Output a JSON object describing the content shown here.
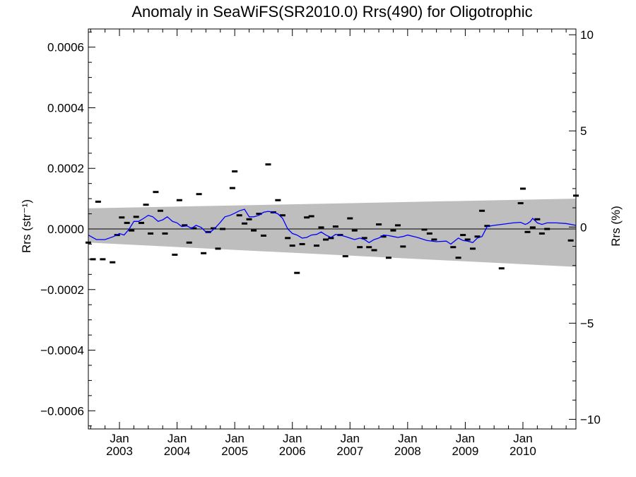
{
  "chart_data": {
    "type": "scatter",
    "title": "Anomaly in SeaWiFS(SR2010.0) Rrs(490) for Oligotrophic",
    "ylabel_left": "Rrs (str⁻¹)",
    "ylabel_right": "Rrs (%)",
    "ylim_left": [
      -0.00066,
      0.00066
    ],
    "ylim_right": [
      -10.5,
      10.3
    ],
    "xlim": [
      2002.46,
      2010.92
    ],
    "left_ticks": [
      {
        "value": 0.0006,
        "label": "0.0006"
      },
      {
        "value": 0.0004,
        "label": "0.0004"
      },
      {
        "value": 0.0002,
        "label": "0.0002"
      },
      {
        "value": 0.0,
        "label": "0.0000"
      },
      {
        "value": -0.0002,
        "label": "−0.0002"
      },
      {
        "value": -0.0004,
        "label": "−0.0004"
      },
      {
        "value": -0.0006,
        "label": "−0.0006"
      }
    ],
    "right_ticks": [
      {
        "value": 10,
        "label": "10"
      },
      {
        "value": 5,
        "label": "5"
      },
      {
        "value": 0,
        "label": "0"
      },
      {
        "value": -5,
        "label": "−5"
      },
      {
        "value": -10,
        "label": "−10"
      }
    ],
    "x_ticks": [
      {
        "value": 2003.0,
        "month": "Jan",
        "year": "2003"
      },
      {
        "value": 2004.0,
        "month": "Jan",
        "year": "2004"
      },
      {
        "value": 2005.0,
        "month": "Jan",
        "year": "2005"
      },
      {
        "value": 2006.0,
        "month": "Jan",
        "year": "2006"
      },
      {
        "value": 2007.0,
        "month": "Jan",
        "year": "2007"
      },
      {
        "value": 2008.0,
        "month": "Jan",
        "year": "2008"
      },
      {
        "value": 2009.0,
        "month": "Jan",
        "year": "2009"
      },
      {
        "value": 2010.0,
        "month": "Jan",
        "year": "2010"
      }
    ],
    "band": {
      "x": [
        2002.46,
        2010.92
      ],
      "upper": [
        6.8e-05,
        0.0001
      ],
      "lower": [
        -4.5e-05,
        -0.000125
      ],
      "color": "#bebebe"
    },
    "zero_line_color": "#000000",
    "points_color": "#000000",
    "points": [
      [
        2002.46,
        -4.5e-05
      ],
      [
        2002.54,
        -0.0001
      ],
      [
        2002.63,
        9e-05
      ],
      [
        2002.71,
        -0.0001
      ],
      [
        2002.88,
        -0.00011
      ],
      [
        2002.96,
        -2e-05
      ],
      [
        2003.04,
        3.8e-05
      ],
      [
        2003.13,
        2e-05
      ],
      [
        2003.21,
        -5e-06
      ],
      [
        2003.29,
        4e-05
      ],
      [
        2003.38,
        2e-05
      ],
      [
        2003.46,
        8e-05
      ],
      [
        2003.54,
        -1.5e-05
      ],
      [
        2003.63,
        0.000122
      ],
      [
        2003.71,
        6e-05
      ],
      [
        2003.79,
        -1.5e-05
      ],
      [
        2003.96,
        -8.5e-05
      ],
      [
        2004.04,
        9.5e-05
      ],
      [
        2004.13,
        1.2e-05
      ],
      [
        2004.21,
        -4.5e-05
      ],
      [
        2004.29,
        2e-06
      ],
      [
        2004.38,
        0.000115
      ],
      [
        2004.46,
        -8e-05
      ],
      [
        2004.54,
        -1e-05
      ],
      [
        2004.63,
        2e-06
      ],
      [
        2004.71,
        -6.5e-05
      ],
      [
        2004.79,
        0.0
      ],
      [
        2004.96,
        0.000135
      ],
      [
        2005.0,
        0.00019
      ],
      [
        2005.08,
        4.5e-05
      ],
      [
        2005.17,
        1.8e-05
      ],
      [
        2005.25,
        3.2e-05
      ],
      [
        2005.33,
        -5e-06
      ],
      [
        2005.42,
        5e-05
      ],
      [
        2005.5,
        -2.2e-05
      ],
      [
        2005.58,
        0.000213
      ],
      [
        2005.67,
        5.5e-05
      ],
      [
        2005.75,
        9.5e-05
      ],
      [
        2005.83,
        4.5e-05
      ],
      [
        2005.92,
        -3e-05
      ],
      [
        2006.0,
        -5.5e-05
      ],
      [
        2006.08,
        -0.000145
      ],
      [
        2006.17,
        -5e-05
      ],
      [
        2006.25,
        3.8e-05
      ],
      [
        2006.33,
        4.2e-05
      ],
      [
        2006.42,
        -5.5e-05
      ],
      [
        2006.5,
        5e-06
      ],
      [
        2006.58,
        -3.5e-05
      ],
      [
        2006.67,
        -3e-05
      ],
      [
        2006.75,
        8e-06
      ],
      [
        2006.83,
        -2e-05
      ],
      [
        2006.92,
        -9e-05
      ],
      [
        2007.0,
        3.5e-05
      ],
      [
        2007.08,
        -5e-06
      ],
      [
        2007.17,
        -6e-05
      ],
      [
        2007.25,
        -3e-05
      ],
      [
        2007.33,
        -6e-05
      ],
      [
        2007.42,
        -7e-05
      ],
      [
        2007.5,
        1.5e-05
      ],
      [
        2007.58,
        -2.5e-05
      ],
      [
        2007.67,
        -9.5e-05
      ],
      [
        2007.75,
        -5e-06
      ],
      [
        2007.83,
        1.2e-05
      ],
      [
        2007.92,
        -5.8e-05
      ],
      [
        2008.29,
        -2e-06
      ],
      [
        2008.38,
        -1.5e-05
      ],
      [
        2008.46,
        -3.5e-05
      ],
      [
        2008.79,
        -6e-05
      ],
      [
        2008.88,
        -9.5e-05
      ],
      [
        2008.96,
        -2e-05
      ],
      [
        2009.04,
        -3.5e-05
      ],
      [
        2009.13,
        -6.5e-05
      ],
      [
        2009.21,
        -2.5e-05
      ],
      [
        2009.29,
        6e-05
      ],
      [
        2009.38,
        1e-05
      ],
      [
        2009.63,
        -0.00013
      ],
      [
        2009.96,
        8.5e-05
      ],
      [
        2010.0,
        0.000133
      ],
      [
        2010.08,
        -1e-05
      ],
      [
        2010.17,
        5e-06
      ],
      [
        2010.25,
        3.2e-05
      ],
      [
        2010.33,
        -1.5e-05
      ],
      [
        2010.42,
        0.0
      ],
      [
        2010.83,
        -3.8e-05
      ],
      [
        2010.92,
        0.00011
      ]
    ],
    "line_color": "#0000ff",
    "line": [
      [
        2002.46,
        -2e-05
      ],
      [
        2002.6,
        -3.5e-05
      ],
      [
        2002.75,
        -3.5e-05
      ],
      [
        2002.9,
        -2.5e-05
      ],
      [
        2003.0,
        -1.5e-05
      ],
      [
        2003.08,
        -2e-05
      ],
      [
        2003.17,
        0.0
      ],
      [
        2003.25,
        2.5e-05
      ],
      [
        2003.33,
        2.5e-05
      ],
      [
        2003.42,
        3.5e-05
      ],
      [
        2003.5,
        4.5e-05
      ],
      [
        2003.58,
        4e-05
      ],
      [
        2003.67,
        2.5e-05
      ],
      [
        2003.75,
        3e-05
      ],
      [
        2003.83,
        4e-05
      ],
      [
        2003.92,
        2.5e-05
      ],
      [
        2004.0,
        2e-05
      ],
      [
        2004.08,
        8e-06
      ],
      [
        2004.17,
        1e-05
      ],
      [
        2004.25,
        2e-06
      ],
      [
        2004.33,
        1.2e-05
      ],
      [
        2004.42,
        5e-06
      ],
      [
        2004.5,
        -1e-05
      ],
      [
        2004.58,
        -1e-05
      ],
      [
        2004.67,
        5e-06
      ],
      [
        2004.75,
        2.2e-05
      ],
      [
        2004.83,
        4e-05
      ],
      [
        2004.92,
        4.5e-05
      ],
      [
        2005.0,
        5.2e-05
      ],
      [
        2005.08,
        6e-05
      ],
      [
        2005.17,
        6.5e-05
      ],
      [
        2005.25,
        4e-05
      ],
      [
        2005.33,
        4e-05
      ],
      [
        2005.42,
        4.5e-05
      ],
      [
        2005.5,
        5.5e-05
      ],
      [
        2005.58,
        5.8e-05
      ],
      [
        2005.67,
        5.5e-05
      ],
      [
        2005.75,
        5e-05
      ],
      [
        2005.83,
        3.5e-05
      ],
      [
        2005.92,
        0.0
      ],
      [
        2006.0,
        -1.5e-05
      ],
      [
        2006.08,
        -2e-05
      ],
      [
        2006.17,
        -3e-05
      ],
      [
        2006.25,
        -2.8e-05
      ],
      [
        2006.33,
        -2e-05
      ],
      [
        2006.42,
        -1.8e-05
      ],
      [
        2006.5,
        -1e-05
      ],
      [
        2006.58,
        -2e-05
      ],
      [
        2006.67,
        -2.8e-05
      ],
      [
        2006.75,
        -1.8e-05
      ],
      [
        2006.83,
        -2e-05
      ],
      [
        2006.92,
        -2.5e-05
      ],
      [
        2007.0,
        -3e-05
      ],
      [
        2007.08,
        -3.5e-05
      ],
      [
        2007.17,
        -3e-05
      ],
      [
        2007.25,
        -3.5e-05
      ],
      [
        2007.33,
        -4.5e-05
      ],
      [
        2007.42,
        -3.5e-05
      ],
      [
        2007.5,
        -3e-05
      ],
      [
        2007.58,
        -2e-05
      ],
      [
        2007.67,
        -2.2e-05
      ],
      [
        2007.75,
        -2.5e-05
      ],
      [
        2007.83,
        -2.8e-05
      ],
      [
        2007.92,
        -2.5e-05
      ],
      [
        2008.0,
        -2e-05
      ],
      [
        2008.17,
        -2.8e-05
      ],
      [
        2008.33,
        -3.8e-05
      ],
      [
        2008.5,
        -4.2e-05
      ],
      [
        2008.67,
        -4e-05
      ],
      [
        2008.75,
        -5e-05
      ],
      [
        2008.88,
        -3e-05
      ],
      [
        2008.96,
        -3.8e-05
      ],
      [
        2009.04,
        -4e-05
      ],
      [
        2009.13,
        -4.5e-05
      ],
      [
        2009.21,
        -3e-05
      ],
      [
        2009.29,
        -2.5e-05
      ],
      [
        2009.38,
        8e-06
      ],
      [
        2009.5,
        1.2e-05
      ],
      [
        2009.67,
        1.6e-05
      ],
      [
        2009.83,
        2e-05
      ],
      [
        2009.96,
        2.2e-05
      ],
      [
        2010.04,
        1.5e-05
      ],
      [
        2010.08,
        1.8e-05
      ],
      [
        2010.13,
        2.5e-05
      ],
      [
        2010.17,
        3.5e-05
      ],
      [
        2010.25,
        2e-05
      ],
      [
        2010.33,
        1.5e-05
      ],
      [
        2010.42,
        2e-05
      ],
      [
        2010.58,
        2e-05
      ],
      [
        2010.75,
        1.8e-05
      ],
      [
        2010.92,
        1.2e-05
      ]
    ]
  }
}
